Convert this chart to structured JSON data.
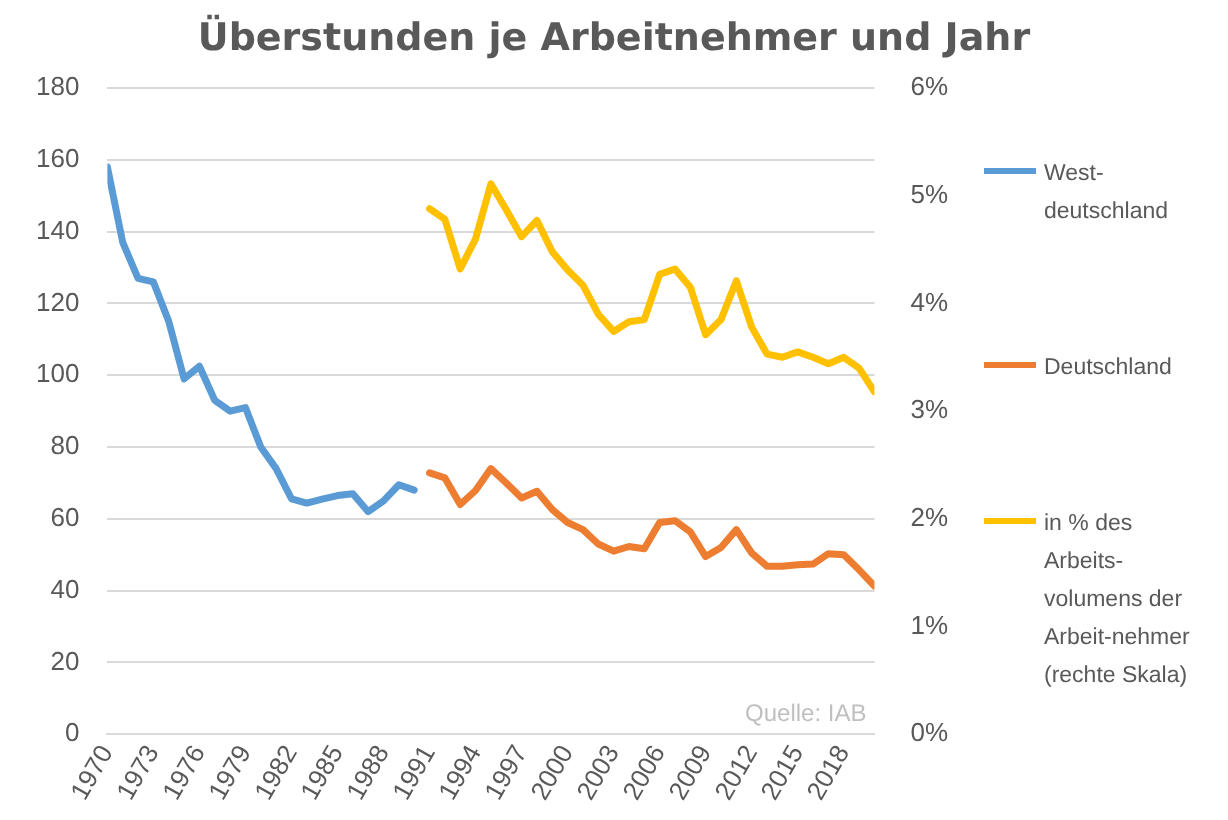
{
  "chart_data": {
    "type": "line",
    "title": "Überstunden je Arbeitnehmer und Jahr",
    "annotations": [
      "Quelle: IAB"
    ],
    "xlim": [
      1970,
      2020
    ],
    "xticks": [
      1970,
      1973,
      1976,
      1979,
      1982,
      1985,
      1988,
      1991,
      1994,
      1997,
      2000,
      2003,
      2006,
      2009,
      2012,
      2015,
      2018
    ],
    "ylim": [
      0,
      180
    ],
    "yticks": [
      0,
      20,
      40,
      60,
      80,
      100,
      120,
      140,
      160,
      180
    ],
    "y2lim": [
      0,
      6
    ],
    "y2ticks": [
      {
        "value": 0,
        "label": "0%"
      },
      {
        "value": 1,
        "label": "1%"
      },
      {
        "value": 2,
        "label": "2%"
      },
      {
        "value": 3,
        "label": "3%"
      },
      {
        "value": 4,
        "label": "4%"
      },
      {
        "value": 5,
        "label": "5%"
      },
      {
        "value": 6,
        "label": "6%"
      }
    ],
    "grid": "y",
    "legend": "right",
    "marker": "none",
    "line_style": "solid",
    "series": [
      {
        "name": "West-deutschland",
        "color": "#5b9bd5",
        "x": [
          1970,
          1971,
          1972,
          1973,
          1974,
          1975,
          1976,
          1977,
          1978,
          1979,
          1980,
          1981,
          1982,
          1983,
          1984,
          1985,
          1986,
          1987,
          1988,
          1989,
          1990
        ],
        "values": [
          158,
          137,
          127,
          126,
          115,
          99,
          102.5,
          93,
          90,
          91,
          80,
          74,
          65.6,
          64.4,
          65.5,
          66.5,
          67,
          62,
          65,
          69.5,
          68
        ]
      },
      {
        "name": "Deutschland",
        "color": "#ed7d31",
        "x": [
          1991,
          1992,
          1993,
          1994,
          1995,
          1996,
          1997,
          1998,
          1999,
          2000,
          2001,
          2002,
          2003,
          2004,
          2005,
          2006,
          2007,
          2008,
          2009,
          2010,
          2011,
          2012,
          2013,
          2014,
          2015,
          2016,
          2017,
          2018,
          2019,
          2020
        ],
        "values": [
          72.8,
          71.4,
          64,
          67.9,
          74,
          70,
          65.8,
          67.7,
          62.6,
          59,
          57,
          53,
          51,
          52.3,
          51.7,
          59,
          59.5,
          56.4,
          49.5,
          52,
          57,
          50.5,
          46.8,
          46.8,
          47.2,
          47.4,
          50.3,
          50,
          45.8,
          41.3
        ]
      },
      {
        "name": "in % des Arbeits-volumens der Arbeit-nehmer (rechte Skala)",
        "color": "#ffc000",
        "axis": "y2",
        "x": [
          1991,
          1992,
          1993,
          1994,
          1995,
          1996,
          1997,
          1998,
          1999,
          2000,
          2001,
          2002,
          2003,
          2004,
          2005,
          2006,
          2007,
          2008,
          2009,
          2010,
          2011,
          2012,
          2013,
          2014,
          2015,
          2016,
          2017,
          2018,
          2019,
          2020
        ],
        "values": [
          4.88,
          4.78,
          4.32,
          4.6,
          5.11,
          4.87,
          4.62,
          4.77,
          4.48,
          4.31,
          4.17,
          3.9,
          3.74,
          3.83,
          3.85,
          4.27,
          4.32,
          4.15,
          3.71,
          3.85,
          4.21,
          3.78,
          3.53,
          3.5,
          3.55,
          3.5,
          3.44,
          3.5,
          3.4,
          3.18
        ]
      }
    ]
  }
}
